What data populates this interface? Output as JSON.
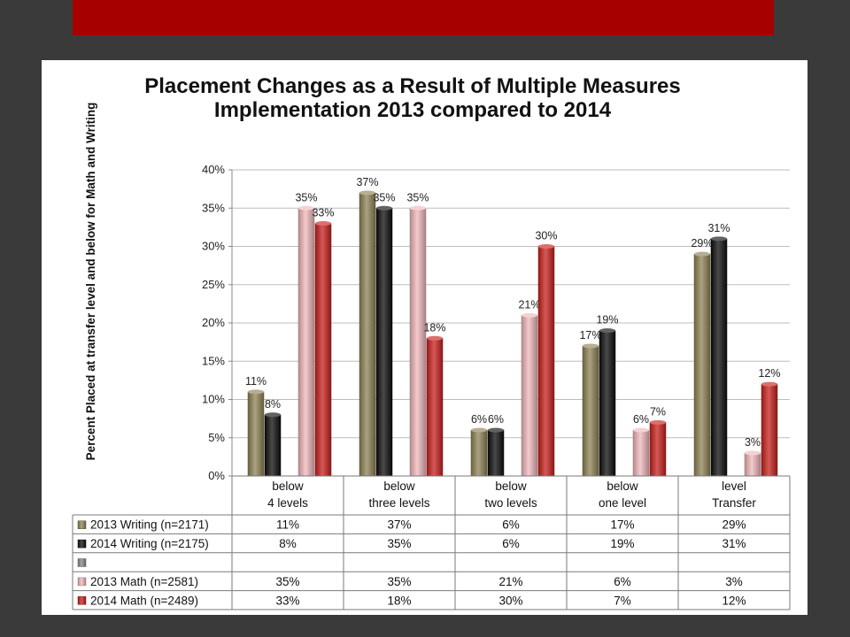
{
  "chart_data": {
    "type": "bar",
    "title_line1": "Placement Changes as a Result of Multiple Measures",
    "title_line2": "Implementation 2013 compared to 2014",
    "ylabel": "Percent Placed at transfer level and below for Math and Writing",
    "ylim": [
      0,
      40
    ],
    "yticks": [
      "0%",
      "5%",
      "10%",
      "15%",
      "20%",
      "25%",
      "30%",
      "35%",
      "40%"
    ],
    "categories": [
      {
        "line1": "below",
        "line2": "4 levels"
      },
      {
        "line1": "below",
        "line2": "three levels"
      },
      {
        "line1": "below",
        "line2": "two levels"
      },
      {
        "line1": "below",
        "line2": "one level"
      },
      {
        "line1": "level",
        "line2": "Transfer"
      }
    ],
    "series": [
      {
        "name": "2013 Writing (n=2171)",
        "color": "#8f8355",
        "values": [
          11,
          37,
          6,
          17,
          29
        ],
        "labels": [
          "11%",
          "37%",
          "6%",
          "17%",
          "29%"
        ]
      },
      {
        "name": "2014 Writing (n=2175)",
        "color": "#0d0d0d",
        "values": [
          8,
          35,
          6,
          19,
          31
        ],
        "labels": [
          "8%",
          "35%",
          "6%",
          "19%",
          "31%"
        ]
      },
      {
        "name": "",
        "color": "#8a8a8a",
        "values": [
          null,
          null,
          null,
          null,
          null
        ],
        "labels": [
          "",
          "",
          "",
          "",
          ""
        ]
      },
      {
        "name": "2013 Math (n=2581)",
        "color": "#f0b8bc",
        "values": [
          35,
          35,
          21,
          6,
          3
        ],
        "labels": [
          "35%",
          "35%",
          "21%",
          "6%",
          "3%"
        ]
      },
      {
        "name": "2014 Math (n=2489)",
        "color": "#c8211e",
        "values": [
          33,
          18,
          30,
          7,
          12
        ],
        "labels": [
          "33%",
          "18%",
          "30%",
          "7%",
          "12%"
        ]
      }
    ],
    "grid": true,
    "legend": "data table below chart"
  }
}
